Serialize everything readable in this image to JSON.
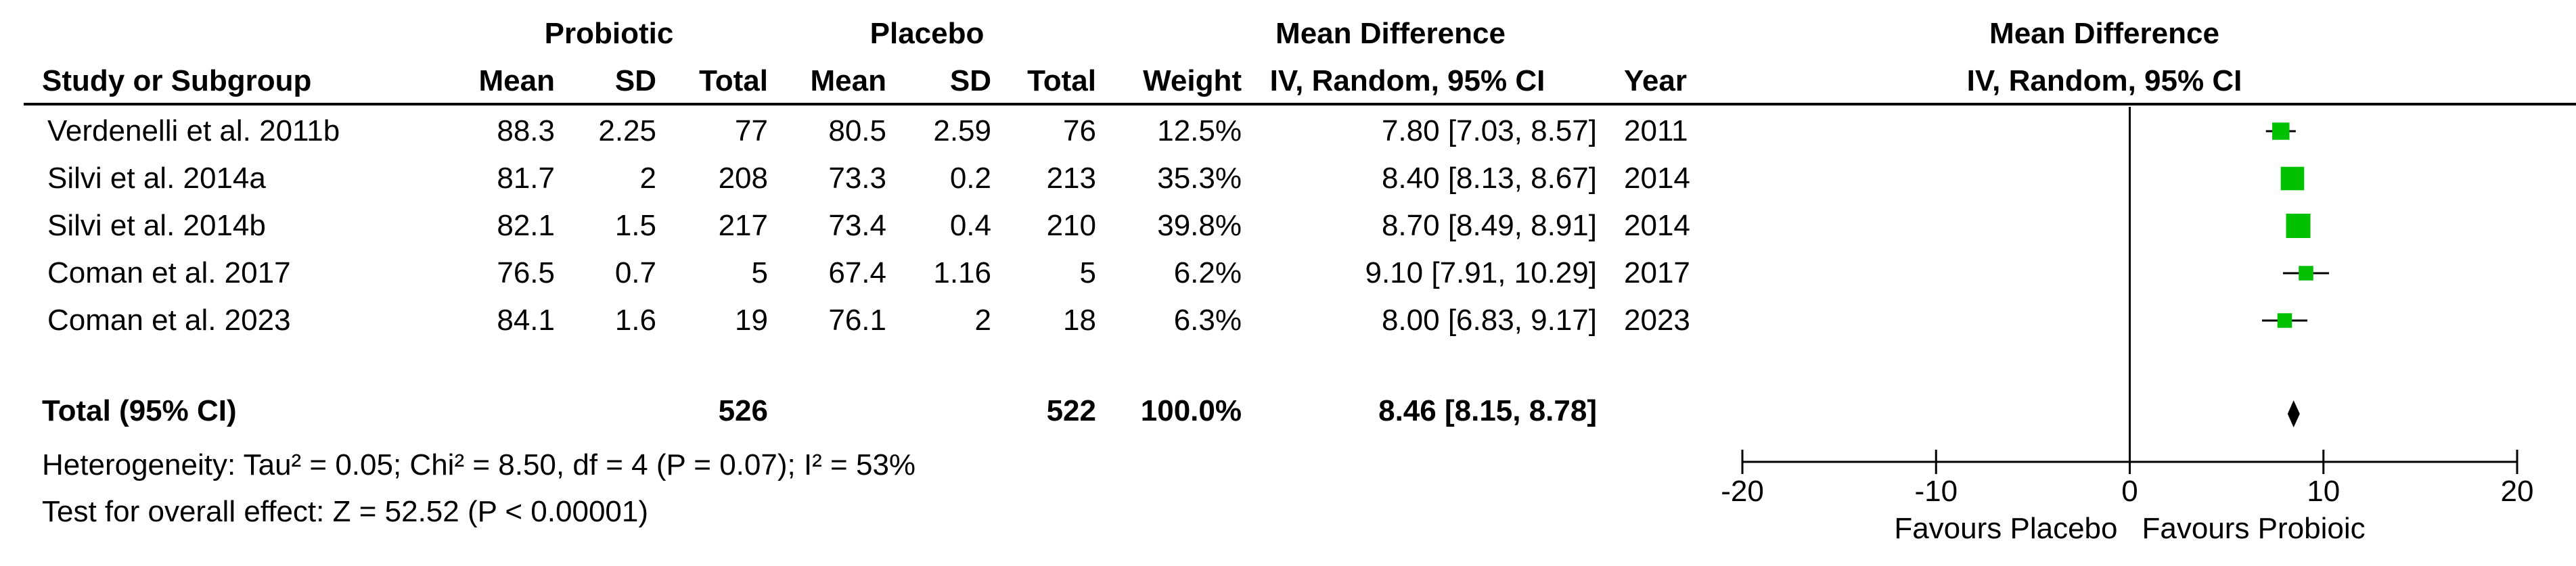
{
  "headers": {
    "group1": "Probiotic",
    "group2": "Placebo",
    "md_top": "Mean Difference",
    "study": "Study or Subgroup",
    "mean": "Mean",
    "sd": "SD",
    "total": "Total",
    "weight": "Weight",
    "md_method": "IV, Random, 95% CI",
    "year": "Year",
    "plot_top": "Mean Difference",
    "plot_method": "IV, Random, 95% CI"
  },
  "studies": [
    {
      "name": "Verdenelli et al. 2011b",
      "m1": "88.3",
      "sd1": "2.25",
      "n1": "77",
      "m2": "80.5",
      "sd2": "2.59",
      "n2": "76",
      "weight": "12.5%",
      "ci": "7.80 [7.03, 8.57]",
      "year": "2011"
    },
    {
      "name": "Silvi et al. 2014a",
      "m1": "81.7",
      "sd1": "2",
      "n1": "208",
      "m2": "73.3",
      "sd2": "0.2",
      "n2": "213",
      "weight": "35.3%",
      "ci": "8.40 [8.13, 8.67]",
      "year": "2014"
    },
    {
      "name": "Silvi et al. 2014b",
      "m1": "82.1",
      "sd1": "1.5",
      "n1": "217",
      "m2": "73.4",
      "sd2": "0.4",
      "n2": "210",
      "weight": "39.8%",
      "ci": "8.70 [8.49, 8.91]",
      "year": "2014"
    },
    {
      "name": "Coman et al. 2017",
      "m1": "76.5",
      "sd1": "0.7",
      "n1": "5",
      "m2": "67.4",
      "sd2": "1.16",
      "n2": "5",
      "weight": "6.2%",
      "ci": "9.10 [7.91, 10.29]",
      "year": "2017"
    },
    {
      "name": "Coman et al. 2023",
      "m1": "84.1",
      "sd1": "1.6",
      "n1": "19",
      "m2": "76.1",
      "sd2": "2",
      "n2": "18",
      "weight": "6.3%",
      "ci": "8.00 [6.83, 9.17]",
      "year": "2023"
    }
  ],
  "total": {
    "label": "Total (95% CI)",
    "n1": "526",
    "n2": "522",
    "weight": "100.0%",
    "ci": "8.46 [8.15, 8.78]"
  },
  "footer": {
    "heterogeneity": "Heterogeneity: Tau² = 0.05; Chi² = 8.50, df = 4 (P = 0.07); I² = 53%",
    "overall": "Test for overall effect: Z = 52.52 (P < 0.00001)"
  },
  "axis": {
    "favours_left": "Favours Placebo",
    "favours_right": "Favours Probioic"
  },
  "chart_data": {
    "type": "forest",
    "xlim": [
      -20,
      20
    ],
    "ticks": [
      -20,
      -10,
      0,
      10,
      20
    ],
    "tick_labels": [
      "-20",
      "-10",
      "0",
      "10",
      "20"
    ],
    "studies": [
      {
        "study": "Verdenelli et al. 2011b",
        "md": 7.8,
        "lo": 7.03,
        "hi": 8.57,
        "weight": 12.5
      },
      {
        "study": "Silvi et al. 2014a",
        "md": 8.4,
        "lo": 8.13,
        "hi": 8.67,
        "weight": 35.3
      },
      {
        "study": "Silvi et al. 2014b",
        "md": 8.7,
        "lo": 8.49,
        "hi": 8.91,
        "weight": 39.8
      },
      {
        "study": "Coman et al. 2017",
        "md": 9.1,
        "lo": 7.91,
        "hi": 10.29,
        "weight": 6.2
      },
      {
        "study": "Coman et al. 2023",
        "md": 8.0,
        "lo": 6.83,
        "hi": 9.17,
        "weight": 6.3
      }
    ],
    "pooled": {
      "md": 8.46,
      "lo": 8.15,
      "hi": 8.78
    },
    "marker_color": "#00c000"
  }
}
